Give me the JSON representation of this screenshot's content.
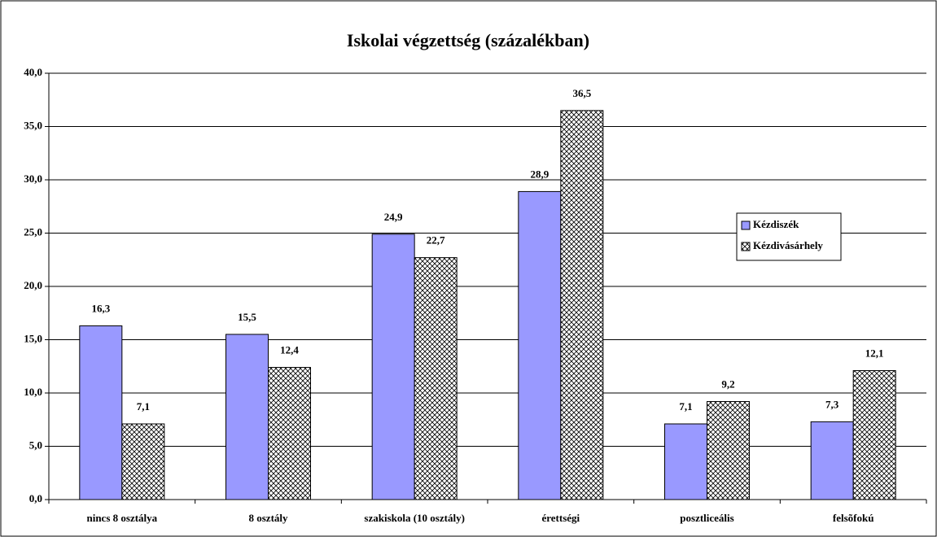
{
  "chart_data": {
    "type": "bar",
    "title": "Iskolai végzettség (százalékban)",
    "categories": [
      "nincs 8 osztálya",
      "8 osztály",
      "szakiskola (10 osztály)",
      "érettségi",
      "posztliceális",
      "felsõfokú"
    ],
    "series": [
      {
        "name": "Kézdiszék",
        "color": "#9999ff",
        "values": [
          16.3,
          15.5,
          24.9,
          28.9,
          7.1,
          7.3
        ],
        "value_labels": [
          "16,3",
          "15,5",
          "24,9",
          "28,9",
          "7,1",
          "7,3"
        ]
      },
      {
        "name": "Kézdivásárhely",
        "color": "#ffffff",
        "pattern": "crosshatch",
        "values": [
          7.1,
          12.4,
          22.7,
          36.5,
          9.2,
          12.1
        ],
        "value_labels": [
          "7,1",
          "12,4",
          "22,7",
          "36,5",
          "9,2",
          "12,1"
        ]
      }
    ],
    "ylim": [
      0,
      40
    ],
    "yticks": [
      {
        "value": 0,
        "label": "0,0"
      },
      {
        "value": 5,
        "label": "5,0"
      },
      {
        "value": 10,
        "label": "10,0"
      },
      {
        "value": 15,
        "label": "15,0"
      },
      {
        "value": 20,
        "label": "20,0"
      },
      {
        "value": 25,
        "label": "25,0"
      },
      {
        "value": 30,
        "label": "30,0"
      },
      {
        "value": 35,
        "label": "35,0"
      },
      {
        "value": 40,
        "label": "40,0"
      }
    ],
    "grid": true,
    "legend": "right"
  }
}
